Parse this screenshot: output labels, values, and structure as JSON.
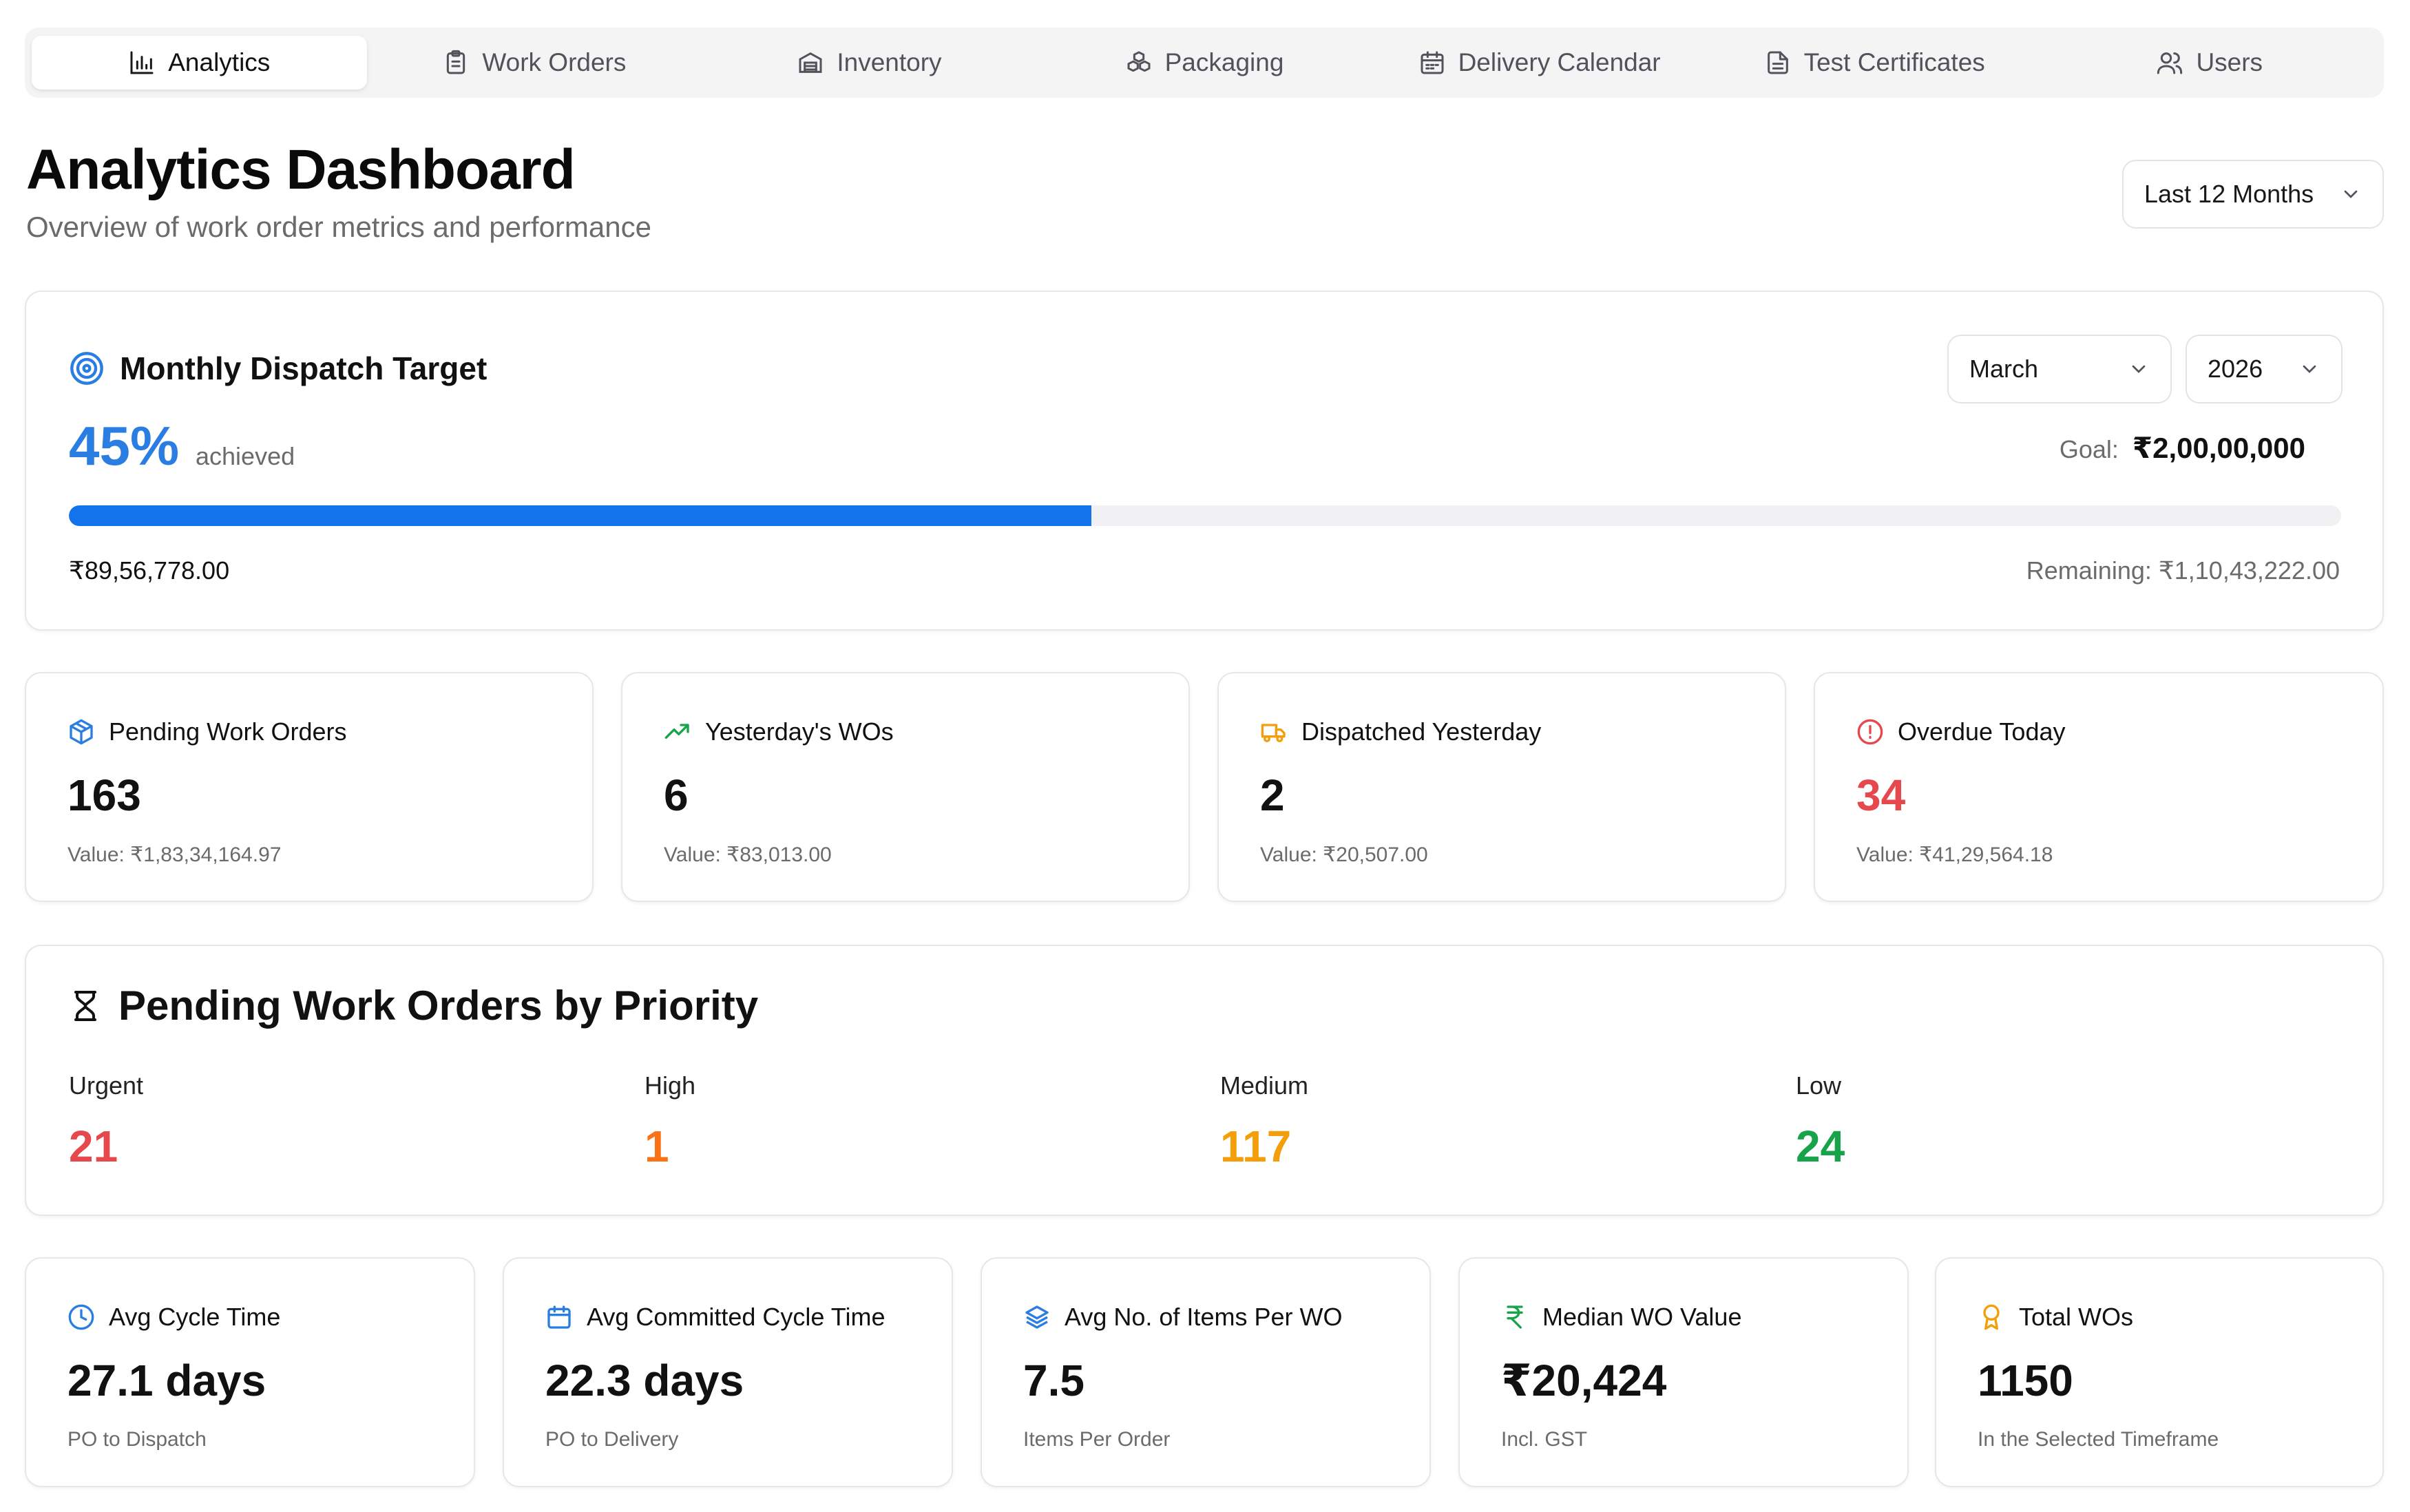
{
  "nav": {
    "tabs": [
      {
        "label": "Analytics",
        "icon": "bar-chart-icon",
        "active": true
      },
      {
        "label": "Work Orders",
        "icon": "clipboard-icon"
      },
      {
        "label": "Inventory",
        "icon": "warehouse-icon"
      },
      {
        "label": "Packaging",
        "icon": "boxes-icon"
      },
      {
        "label": "Delivery Calendar",
        "icon": "calendar-icon"
      },
      {
        "label": "Test Certificates",
        "icon": "document-icon"
      },
      {
        "label": "Users",
        "icon": "users-icon"
      }
    ]
  },
  "header": {
    "title": "Analytics Dashboard",
    "subtitle": "Overview of work order metrics and performance",
    "range_select": "Last 12 Months"
  },
  "dispatch_target": {
    "title": "Monthly Dispatch Target",
    "percent_text": "45%",
    "percent_value": 45,
    "achieved_label": "achieved",
    "goal_label": "Goal:",
    "goal_value": "₹2,00,00,000",
    "month_select": "March",
    "year_select": "2026",
    "achieved_amount": "₹89,56,778.00",
    "remaining": "Remaining: ₹1,10,43,222.00"
  },
  "kpis": [
    {
      "label": "Pending Work Orders",
      "value": "163",
      "sub": "Value: ₹1,83,34,164.97",
      "icon": "package-icon",
      "icon_color": "#2a7de1",
      "value_color": "#111111"
    },
    {
      "label": "Yesterday's WOs",
      "value": "6",
      "sub": "Value: ₹83,013.00",
      "icon": "trending-up-icon",
      "icon_color": "#16a34a",
      "value_color": "#111111"
    },
    {
      "label": "Dispatched Yesterday",
      "value": "2",
      "sub": "Value: ₹20,507.00",
      "icon": "truck-icon",
      "icon_color": "#f59e0b",
      "value_color": "#111111"
    },
    {
      "label": "Overdue Today",
      "value": "34",
      "sub": "Value: ₹41,29,564.18",
      "icon": "alert-circle-icon",
      "icon_color": "#e5484d",
      "value_color": "#e5484d"
    }
  ],
  "priority": {
    "title": "Pending Work Orders by Priority",
    "items": [
      {
        "label": "Urgent",
        "value": "21",
        "color": "#e5484d"
      },
      {
        "label": "High",
        "value": "1",
        "color": "#f97316"
      },
      {
        "label": "Medium",
        "value": "117",
        "color": "#f59e0b"
      },
      {
        "label": "Low",
        "value": "24",
        "color": "#16a34a"
      }
    ]
  },
  "stats": [
    {
      "label": "Avg Cycle Time",
      "value": "27.1 days",
      "sub": "PO to Dispatch",
      "icon": "clock-icon",
      "icon_color": "#2a7de1"
    },
    {
      "label": "Avg Committed Cycle Time",
      "value": "22.3 days",
      "sub": "PO to Delivery",
      "icon": "calendar-icon",
      "icon_color": "#2a7de1"
    },
    {
      "label": "Avg No. of Items Per WO",
      "value": "7.5",
      "sub": "Items Per Order",
      "icon": "layers-icon",
      "icon_color": "#2a7de1"
    },
    {
      "label": "Median WO Value",
      "value": "₹20,424",
      "sub": "Incl. GST",
      "icon": "rupee-icon",
      "icon_color": "#16a34a"
    },
    {
      "label": "Total WOs",
      "value": "1150",
      "sub": "In the Selected Timeframe",
      "icon": "award-icon",
      "icon_color": "#f59e0b"
    }
  ]
}
